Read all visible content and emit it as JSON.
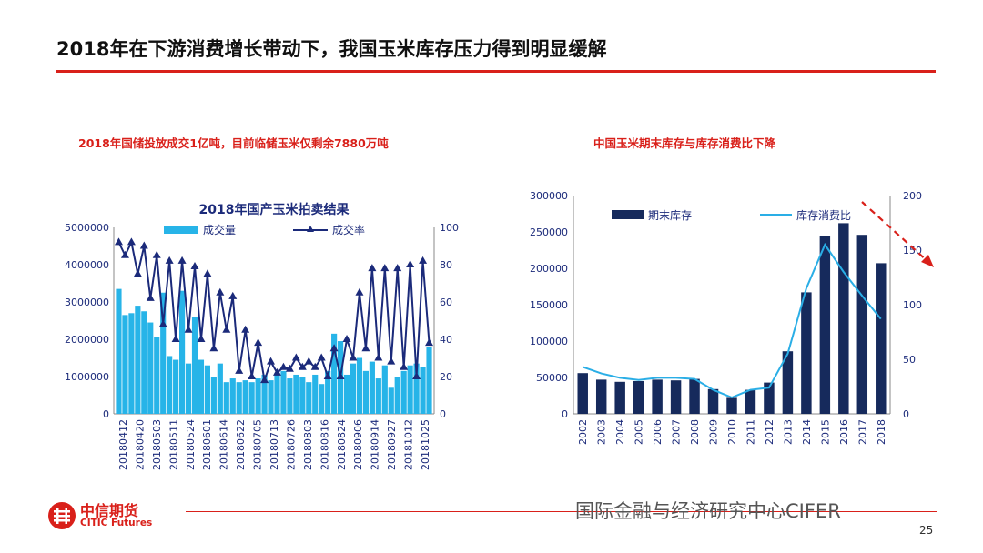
{
  "slide": {
    "title": "2018年在下游消费增长带动下，我国玉米库存压力得到明显缓解",
    "page_number": "25",
    "watermark": "国际金融与经济研究中心CIFER",
    "logo_cn": "中信期货",
    "logo_en": "CITIC Futures"
  },
  "left_panel": {
    "subtitle": "2018年国储投放成交1亿吨，目前临储玉米仅剩余7880万吨"
  },
  "right_panel": {
    "subtitle": "中国玉米期末库存与库存消费比下降"
  },
  "colors": {
    "accent_red": "#d9201a",
    "bar_light": "#27b4e8",
    "line_dark": "#1b2a7a",
    "bar_navy": "#162a5c",
    "line_light": "#2aaee6"
  },
  "chart_data": [
    {
      "type": "bar",
      "title": "2018年国产玉米拍卖结果",
      "xlabel": "",
      "ylabel": "",
      "ylim": [
        0,
        5000000
      ],
      "y2lim": [
        0,
        100
      ],
      "y_ticks": [
        "0",
        "1000000",
        "2000000",
        "3000000",
        "4000000",
        "5000000"
      ],
      "y2_ticks": [
        "0",
        "20",
        "40",
        "60",
        "80",
        "100"
      ],
      "x_tick_labels": [
        "20180412",
        "20180420",
        "20180503",
        "20180511",
        "20180524",
        "20180601",
        "20180614",
        "20180622",
        "20180705",
        "20180713",
        "20180726",
        "20180803",
        "20180816",
        "20180824",
        "20180906",
        "20180914",
        "20180927",
        "20181012",
        "20181025"
      ],
      "legend": {
        "position": "top",
        "items": [
          "成交量",
          "成交率"
        ]
      },
      "series": [
        {
          "name": "成交量",
          "kind": "bar",
          "axis": "left",
          "values": [
            3350000,
            2650000,
            2700000,
            2900000,
            2750000,
            2450000,
            2050000,
            3250000,
            1550000,
            1450000,
            3300000,
            1350000,
            2600000,
            1450000,
            1300000,
            1000000,
            1350000,
            850000,
            950000,
            850000,
            900000,
            850000,
            950000,
            1050000,
            900000,
            1100000,
            1150000,
            950000,
            1050000,
            1000000,
            850000,
            1050000,
            800000,
            1150000,
            2150000,
            1950000,
            1050000,
            1350000,
            1500000,
            1150000,
            1400000,
            950000,
            1300000,
            700000,
            1000000,
            1150000,
            1300000,
            1350000,
            1250000,
            1800000
          ]
        },
        {
          "name": "成交率",
          "kind": "line",
          "axis": "right",
          "values": [
            92,
            85,
            92,
            75,
            90,
            62,
            85,
            48,
            82,
            40,
            82,
            45,
            79,
            40,
            75,
            35,
            65,
            45,
            63,
            23,
            45,
            20,
            38,
            18,
            28,
            22,
            25,
            24,
            30,
            25,
            28,
            25,
            30,
            20,
            35,
            20,
            40,
            30,
            65,
            35,
            78,
            30,
            78,
            28,
            78,
            25,
            80,
            20,
            82,
            38
          ]
        }
      ]
    },
    {
      "type": "bar",
      "title": "",
      "xlabel": "",
      "ylabel": "",
      "ylim": [
        0,
        300000
      ],
      "y2lim": [
        0,
        200
      ],
      "y_ticks": [
        "0",
        "50000",
        "100000",
        "150000",
        "200000",
        "250000",
        "300000"
      ],
      "y2_ticks": [
        "0",
        "50",
        "100",
        "150",
        "200"
      ],
      "categories": [
        "2002",
        "2003",
        "2004",
        "2005",
        "2006",
        "2007",
        "2008",
        "2009",
        "2010",
        "2011",
        "2012",
        "2013",
        "2014",
        "2015",
        "2016",
        "2017",
        "2018"
      ],
      "legend": {
        "position": "top",
        "items": [
          "期末库存",
          "库存消费比"
        ]
      },
      "series": [
        {
          "name": "期末库存",
          "kind": "bar",
          "axis": "left",
          "values": [
            56000,
            47000,
            44000,
            45000,
            47000,
            46000,
            48000,
            34000,
            22000,
            33000,
            43000,
            86000,
            167000,
            244000,
            262000,
            246000,
            207000
          ]
        },
        {
          "name": "库存消费比",
          "kind": "line",
          "axis": "right",
          "values": [
            43,
            37,
            33,
            31,
            33,
            33,
            32,
            22,
            15,
            22,
            24,
            55,
            115,
            155,
            130,
            108,
            87
          ]
        }
      ]
    }
  ]
}
